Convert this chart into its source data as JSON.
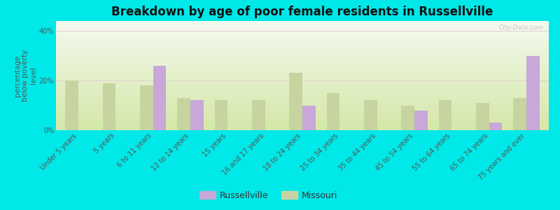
{
  "title": "Breakdown by age of poor female residents in Russellville",
  "ylabel": "percentage\nbelow poverty\nlevel",
  "categories": [
    "Under 5 years",
    "5 years",
    "6 to 11 years",
    "12 to 14 years",
    "15 years",
    "16 and 17 years",
    "18 to 24 years",
    "25 to 34 years",
    "35 to 44 years",
    "45 to 54 years",
    "55 to 64 years",
    "65 to 74 years",
    "75 years and over"
  ],
  "russellville": [
    0,
    0,
    26.0,
    12.0,
    0,
    0,
    10.0,
    0,
    0,
    8.0,
    0,
    3.0,
    30.0
  ],
  "missouri": [
    20.0,
    19.0,
    18.0,
    13.0,
    12.0,
    12.0,
    23.0,
    15.0,
    12.0,
    10.0,
    12.0,
    11.0,
    13.0
  ],
  "russellville_color": "#c8a8d8",
  "missouri_color": "#c8d4a0",
  "background_color_bottom": "#c8dca0",
  "background_color_top": "#f0f8ee",
  "outer_background": "#00e8e8",
  "ylim": [
    0,
    44
  ],
  "yticks": [
    0,
    20,
    40
  ],
  "ytick_labels": [
    "0%",
    "20%",
    "40%"
  ],
  "bar_width": 0.35,
  "title_fontsize": 12,
  "axis_label_fontsize": 7.5,
  "tick_fontsize": 7,
  "legend_fontsize": 9
}
